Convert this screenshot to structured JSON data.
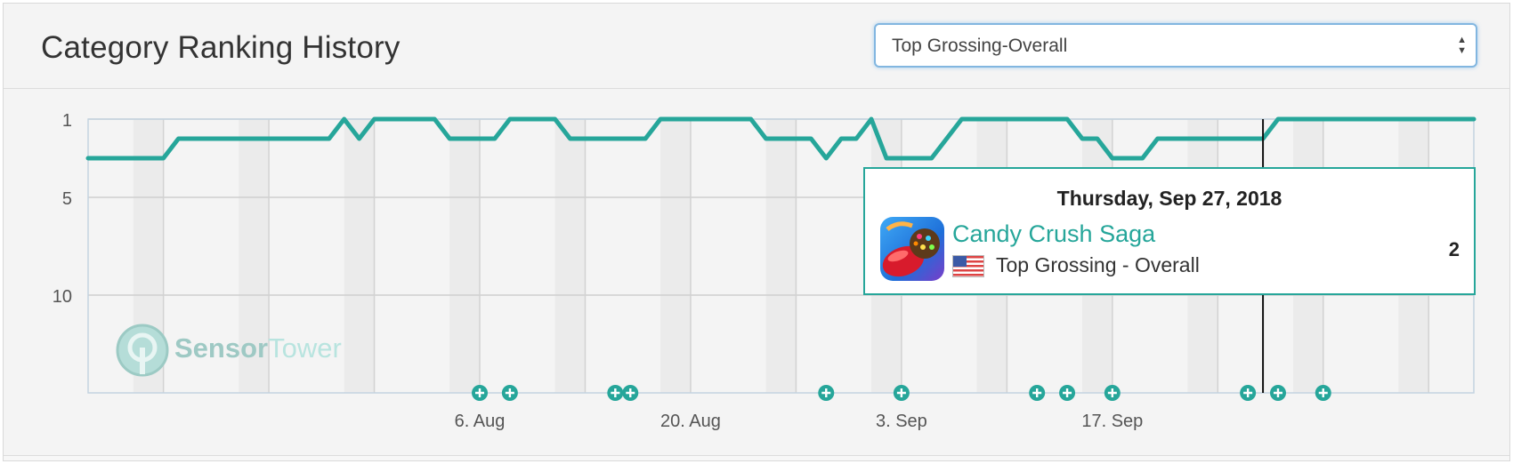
{
  "header": {
    "title": "Category Ranking History",
    "select_value": "Top Grossing-Overall"
  },
  "tooltip": {
    "date": "Thursday, Sep 27, 2018",
    "app_name": "Candy Crush Saga",
    "category": "Top Grossing - Overall",
    "rank": "2"
  },
  "watermark": {
    "part1": "Sensor",
    "part2": "Tower"
  },
  "colors": {
    "line": "#26a69a",
    "accent": "#26a69a",
    "band": "#ebebeb",
    "grid": "#cfcfcf"
  },
  "chart_data": {
    "type": "line",
    "title": "",
    "xlabel": "",
    "ylabel": "",
    "y_ticks": [
      "1",
      "5",
      "10"
    ],
    "y_axis_reversed": true,
    "ylim": [
      1,
      15
    ],
    "x_tick_labels": [
      "6. Aug",
      "20. Aug",
      "3. Sep",
      "17. Sep"
    ],
    "x_tick_dates": [
      "2018-08-06",
      "2018-08-20",
      "2018-09-03",
      "2018-09-17"
    ],
    "x_range": [
      "2018-07-11",
      "2018-10-11"
    ],
    "series": [
      {
        "name": "Candy Crush Saga",
        "x": [
          "2018-07-11",
          "2018-07-16",
          "2018-07-17",
          "2018-07-27",
          "2018-07-28",
          "2018-07-29",
          "2018-07-30",
          "2018-08-03",
          "2018-08-04",
          "2018-08-07",
          "2018-08-08",
          "2018-08-11",
          "2018-08-12",
          "2018-08-17",
          "2018-08-18",
          "2018-08-24",
          "2018-08-25",
          "2018-08-28",
          "2018-08-29",
          "2018-08-30",
          "2018-08-31",
          "2018-09-01",
          "2018-09-02",
          "2018-09-05",
          "2018-09-07",
          "2018-09-14",
          "2018-09-15",
          "2018-09-16",
          "2018-09-17",
          "2018-09-19",
          "2018-09-20",
          "2018-09-27",
          "2018-09-28",
          "2018-10-11"
        ],
        "y": [
          3,
          3,
          2,
          2,
          1,
          2,
          1,
          1,
          2,
          2,
          1,
          1,
          2,
          2,
          1,
          1,
          2,
          2,
          3,
          2,
          2,
          1,
          3,
          3,
          1,
          1,
          2,
          2,
          3,
          3,
          2,
          2,
          1,
          1
        ]
      }
    ],
    "annotation_dates": [
      "2018-08-06",
      "2018-08-08",
      "2018-08-15",
      "2018-08-16",
      "2018-08-29",
      "2018-09-03",
      "2018-09-12",
      "2018-09-14",
      "2018-09-17",
      "2018-09-26",
      "2018-09-28",
      "2018-10-01"
    ],
    "crosshair_date": "2018-09-27",
    "grid": true,
    "legend": "none"
  }
}
